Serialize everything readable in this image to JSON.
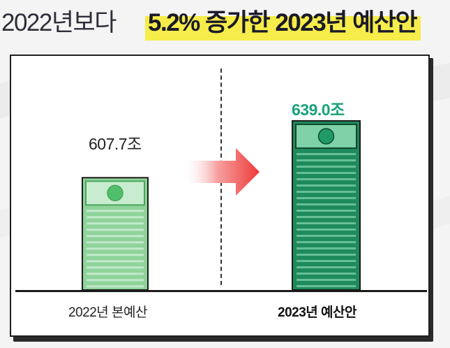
{
  "title": {
    "prefix": "2022년보다",
    "highlight": "5.2% 증가한 2023년 예산안"
  },
  "colors": {
    "highlight": "#f6ec4a",
    "old_bar": "#8fd39a",
    "new_bar": "#1f8a5b",
    "new_value": "#1aa27a",
    "arrow": "#ee3a3a"
  },
  "chart_data": {
    "type": "bar",
    "categories": [
      "2022년 본예산",
      "2023년 예산안"
    ],
    "values": [
      607.7,
      639.0
    ],
    "value_labels": [
      "607.7조",
      "639.0조"
    ],
    "unit": "조",
    "ylim": [
      0,
      700
    ],
    "grid": false,
    "annotation": "arrow from 2022 bar to 2023 bar"
  }
}
